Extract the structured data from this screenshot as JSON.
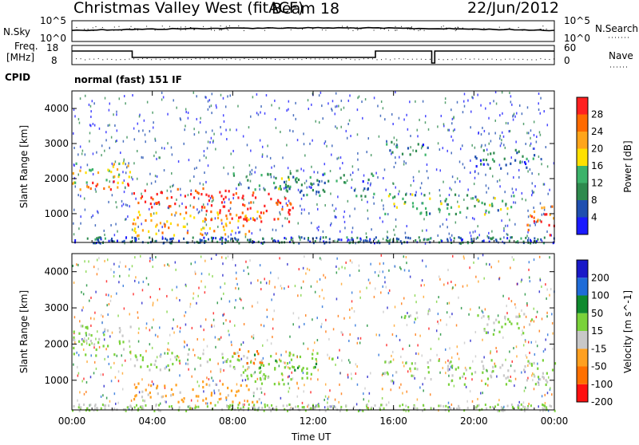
{
  "header": {
    "station": "Christmas Valley West (fitACF)",
    "beam": "Beam 18",
    "date": "22/Jun/2012"
  },
  "top_panels": {
    "nsky_label": "N.Sky",
    "nsky_ticks": [
      "10^5",
      "10^0"
    ],
    "nsearch_label": "N.Search",
    "nsearch_ticks": [
      "10^5",
      "10^0"
    ],
    "freq_label_1": "Freq.",
    "freq_label_2": "[MHz]",
    "freq_ticks": [
      "18",
      "8"
    ],
    "nave_label": "Nave",
    "nave_ticks": [
      "60",
      "0"
    ],
    "cpid_label": "CPID",
    "cpid_value": "normal (fast) 151 IF"
  },
  "colors": {
    "power": [
      "#1a1aff",
      "#1f4fb0",
      "#2e8a4e",
      "#3cb36a",
      "#ffe000",
      "#ffa51a",
      "#ff6a00",
      "#ff2020"
    ],
    "velocity": [
      "#1919c8",
      "#1f6cd8",
      "#0f8a2e",
      "#7ad23a",
      "#c8c8c8",
      "#ffa020",
      "#ff7000",
      "#ff1010"
    ]
  },
  "chart_data": [
    {
      "type": "heatmap",
      "title": "",
      "xlabel": "Time UT",
      "ylabel": "Slant Range [km]",
      "xlim": [
        "00:00",
        "00:00"
      ],
      "xticks": [
        "00:00",
        "04:00",
        "08:00",
        "12:00",
        "16:00",
        "20:00",
        "00:00"
      ],
      "ylim": [
        180,
        4500
      ],
      "yticks": [
        "1000",
        "2000",
        "3000",
        "4000"
      ],
      "colorbar_label": "Power [dB]",
      "colorbar_ticks": [
        "4",
        "8",
        "12",
        "16",
        "20",
        "24",
        "28"
      ],
      "scale": [
        0,
        30
      ],
      "regions": [
        {
          "t0": 0.0,
          "t1": 2.9,
          "r0": 1900,
          "r1": 2500,
          "level": 16
        },
        {
          "t0": 0.0,
          "t1": 2.9,
          "r0": 1700,
          "r1": 2000,
          "level": 24
        },
        {
          "t0": 3.0,
          "t1": 6.8,
          "r0": 1200,
          "r1": 1800,
          "level": 28
        },
        {
          "t0": 3.0,
          "t1": 9.5,
          "r0": 400,
          "r1": 1100,
          "level": 20
        },
        {
          "t0": 6.5,
          "t1": 11.0,
          "r0": 800,
          "r1": 1700,
          "level": 28
        },
        {
          "t0": 8.0,
          "t1": 11.0,
          "r0": 1700,
          "r1": 2200,
          "level": 12
        },
        {
          "t0": 10.5,
          "t1": 15.0,
          "r0": 1500,
          "r1": 2200,
          "level": 8
        },
        {
          "t0": 15.5,
          "t1": 18.0,
          "r0": 1000,
          "r1": 1600,
          "level": 12
        },
        {
          "t0": 15.5,
          "t1": 17.8,
          "r0": 2700,
          "r1": 3100,
          "level": 8
        },
        {
          "t0": 18.2,
          "t1": 22.0,
          "r0": 1000,
          "r1": 1600,
          "level": 12
        },
        {
          "t0": 20.0,
          "t1": 23.0,
          "r0": 2300,
          "r1": 2900,
          "level": 8
        },
        {
          "t0": 22.6,
          "t1": 24.0,
          "r0": 400,
          "r1": 1300,
          "level": 24
        }
      ]
    },
    {
      "type": "heatmap",
      "title": "",
      "xlabel": "Time UT",
      "ylabel": "Slant Range [km]",
      "xlim": [
        "00:00",
        "00:00"
      ],
      "xticks": [
        "00:00",
        "04:00",
        "08:00",
        "12:00",
        "16:00",
        "20:00",
        "00:00"
      ],
      "ylim": [
        180,
        4500
      ],
      "yticks": [
        "1000",
        "2000",
        "3000",
        "4000"
      ],
      "colorbar_label": "Velocity [m s^-1]",
      "colorbar_ticks": [
        "200",
        "100",
        "50",
        "15",
        "-15",
        "-50",
        "-100",
        "-200"
      ],
      "scale": [
        -250,
        250
      ],
      "regions": [
        {
          "t0": 0.0,
          "t1": 2.9,
          "r0": 1700,
          "r1": 2600,
          "level": 0
        },
        {
          "t0": 3.0,
          "t1": 9.5,
          "r0": 1300,
          "r1": 1800,
          "level": 0
        },
        {
          "t0": 3.0,
          "t1": 9.5,
          "r0": 400,
          "r1": 1000,
          "level": -80
        },
        {
          "t0": 8.0,
          "t1": 9.5,
          "r0": 1500,
          "r1": 1900,
          "level": -150
        },
        {
          "t0": 9.0,
          "t1": 13.0,
          "r0": 1300,
          "r1": 1800,
          "level": 40
        },
        {
          "t0": 8.0,
          "t1": 12.0,
          "r0": 900,
          "r1": 1400,
          "level": 20
        },
        {
          "t0": 15.5,
          "t1": 18.0,
          "r0": 1000,
          "r1": 1600,
          "level": 0
        },
        {
          "t0": 16.5,
          "t1": 17.8,
          "r0": 2700,
          "r1": 3000,
          "level": 0
        },
        {
          "t0": 18.2,
          "t1": 24.0,
          "r0": 900,
          "r1": 1600,
          "level": 0
        },
        {
          "t0": 20.0,
          "t1": 23.0,
          "r0": 2300,
          "r1": 2900,
          "level": 0
        }
      ]
    }
  ]
}
